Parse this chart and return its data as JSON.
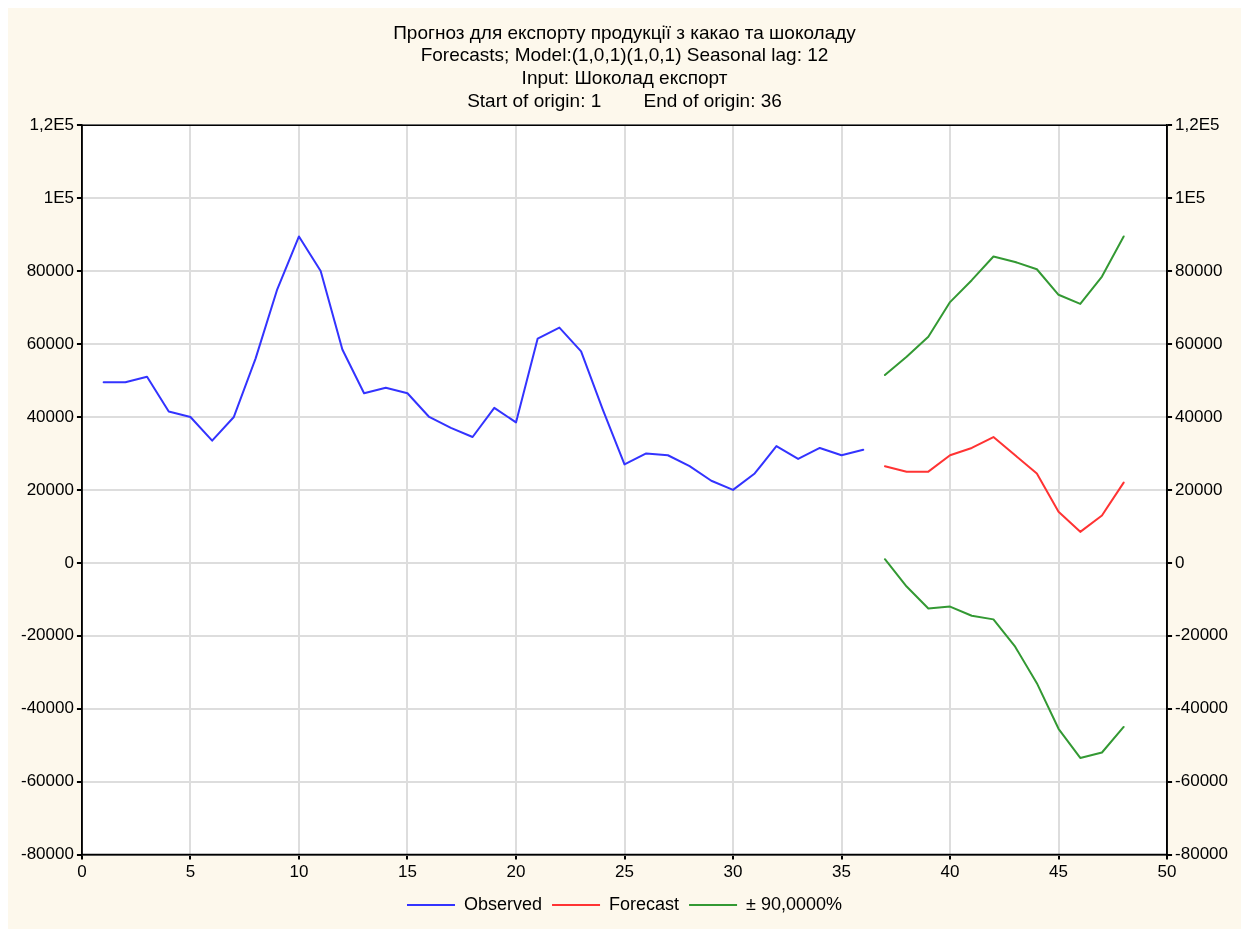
{
  "chart_data": {
    "type": "line",
    "title": "Прогноз для експорту продукції з какао та шоколаду",
    "subtitle": "Forecasts; Model:(1,0,1)(1,0,1) Seasonal lag: 12\nInput: Шоколад експорт\nStart of origin: 1        End of origin: 36",
    "series": [
      {
        "name": "Observed",
        "color": "#3333ff",
        "x": [
          1,
          2,
          3,
          4,
          5,
          6,
          7,
          8,
          9,
          10,
          11,
          12,
          13,
          14,
          15,
          16,
          17,
          18,
          19,
          20,
          21,
          22,
          23,
          24,
          25,
          26,
          27,
          28,
          29,
          30,
          31,
          32,
          33,
          34,
          35,
          36
        ],
        "values": [
          49500,
          49500,
          51000,
          41500,
          40000,
          33500,
          40000,
          56000,
          75000,
          89500,
          80000,
          58500,
          46500,
          48000,
          46500,
          40000,
          37000,
          34500,
          42500,
          38500,
          61500,
          64500,
          58000,
          42000,
          27000,
          30000,
          29500,
          26500,
          22500,
          20000,
          24500,
          32000,
          28500,
          31500,
          29500,
          31000
        ]
      },
      {
        "name": "Forecast",
        "color": "#ff3333",
        "x": [
          37,
          38,
          39,
          40,
          41,
          42,
          43,
          44,
          45,
          46,
          47,
          48
        ],
        "values": [
          26500,
          25000,
          25000,
          29500,
          31500,
          34500,
          29500,
          24500,
          14000,
          8500,
          13000,
          22000
        ]
      },
      {
        "name": "± 90,0000%",
        "color": "#339933",
        "x": [
          37,
          38,
          39,
          40,
          41,
          42,
          43,
          44,
          45,
          46,
          47,
          48
        ],
        "values": [
          51500,
          56500,
          62000,
          71500,
          77500,
          84000,
          82500,
          80500,
          73500,
          71000,
          78500,
          89500
        ]
      },
      {
        "color": "#339933",
        "x": [
          37,
          38,
          39,
          40,
          41,
          42,
          43,
          44,
          45,
          46,
          47,
          48
        ],
        "values": [
          1000,
          -6500,
          -12500,
          -12000,
          -14500,
          -15500,
          -23000,
          -33000,
          -45500,
          -53500,
          -52000,
          -45000
        ]
      }
    ],
    "xlim": [
      0,
      50
    ],
    "xticks": [
      0,
      5,
      10,
      15,
      20,
      25,
      30,
      35,
      40,
      45,
      50
    ],
    "ylim": [
      -80000,
      120000
    ],
    "yticks": [
      -80000,
      -60000,
      -40000,
      -20000,
      0,
      20000,
      40000,
      60000,
      80000,
      {
        "value": 100000,
        "label": "1E5"
      },
      {
        "value": 120000,
        "label": "1,2E5"
      }
    ],
    "y2lim": [
      -80000,
      120000
    ],
    "y2ticks": [
      -80000,
      -60000,
      -40000,
      -20000,
      0,
      20000,
      40000,
      60000,
      80000,
      {
        "value": 100000,
        "label": "1E5"
      },
      {
        "value": 120000,
        "label": "1,2E5"
      }
    ],
    "grid": true,
    "legend": "bottom",
    "marker": "none",
    "line_style": "solid"
  }
}
